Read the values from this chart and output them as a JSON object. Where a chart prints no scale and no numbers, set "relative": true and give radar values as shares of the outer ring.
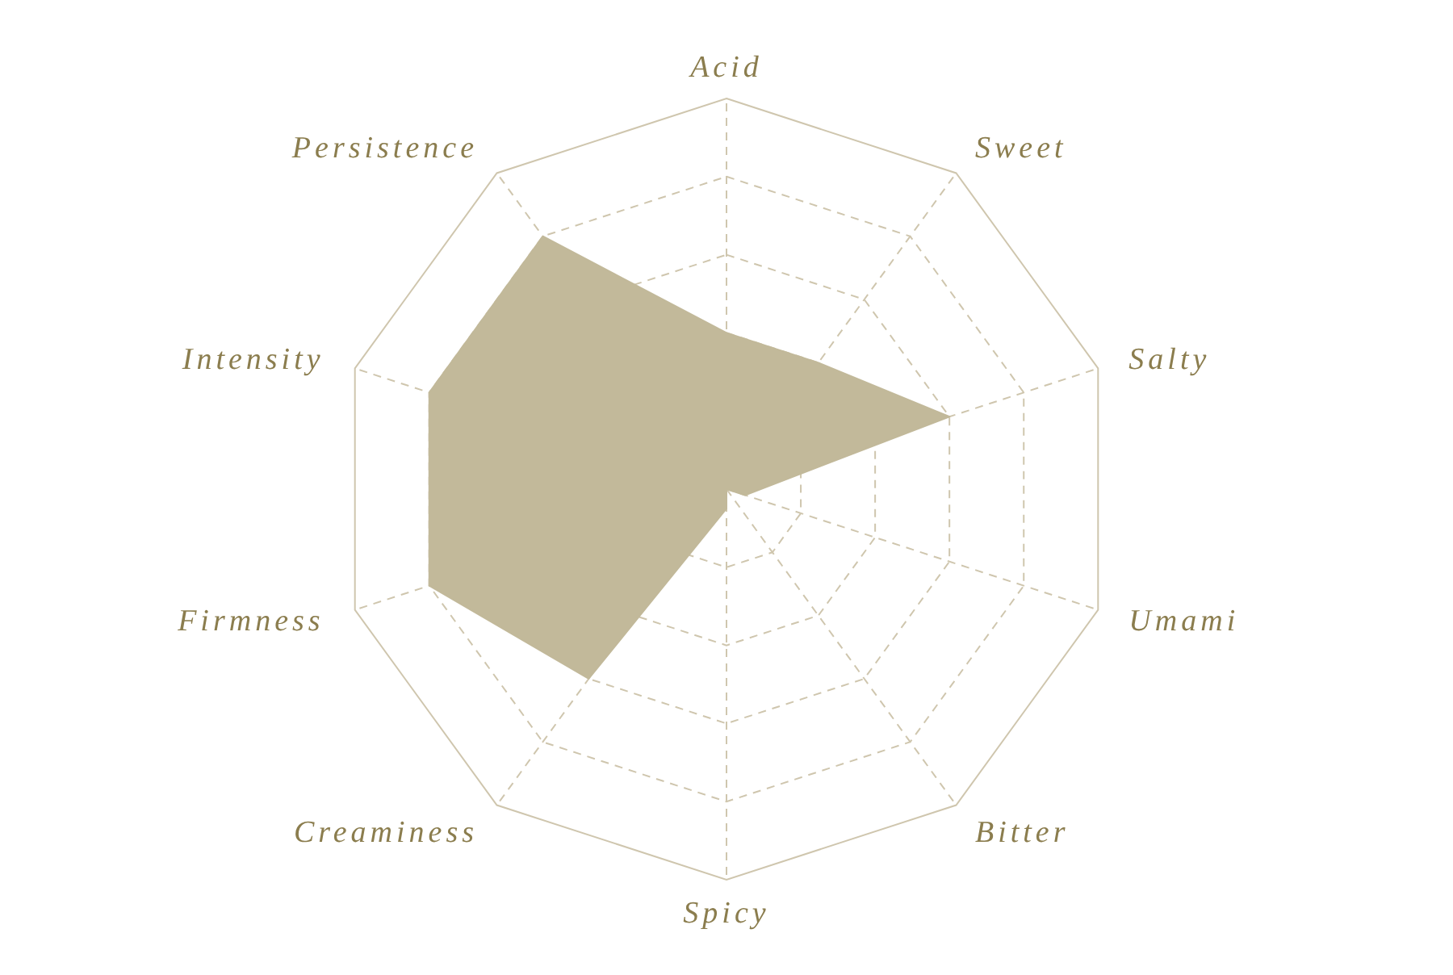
{
  "chart_data": {
    "type": "radar",
    "relative": true,
    "categories": [
      "Acid",
      "Sweet",
      "Salty",
      "Umami",
      "Bitter",
      "Spicy",
      "Creaminess",
      "Firmness",
      "Intensity",
      "Persistence"
    ],
    "series": [
      {
        "color": "#c2b99a",
        "values": [
          0.4,
          0.4,
          0.6,
          0.05,
          0,
          0.05,
          0.6,
          0.8,
          0.8,
          0.8
        ]
      }
    ],
    "grid": true
  }
}
